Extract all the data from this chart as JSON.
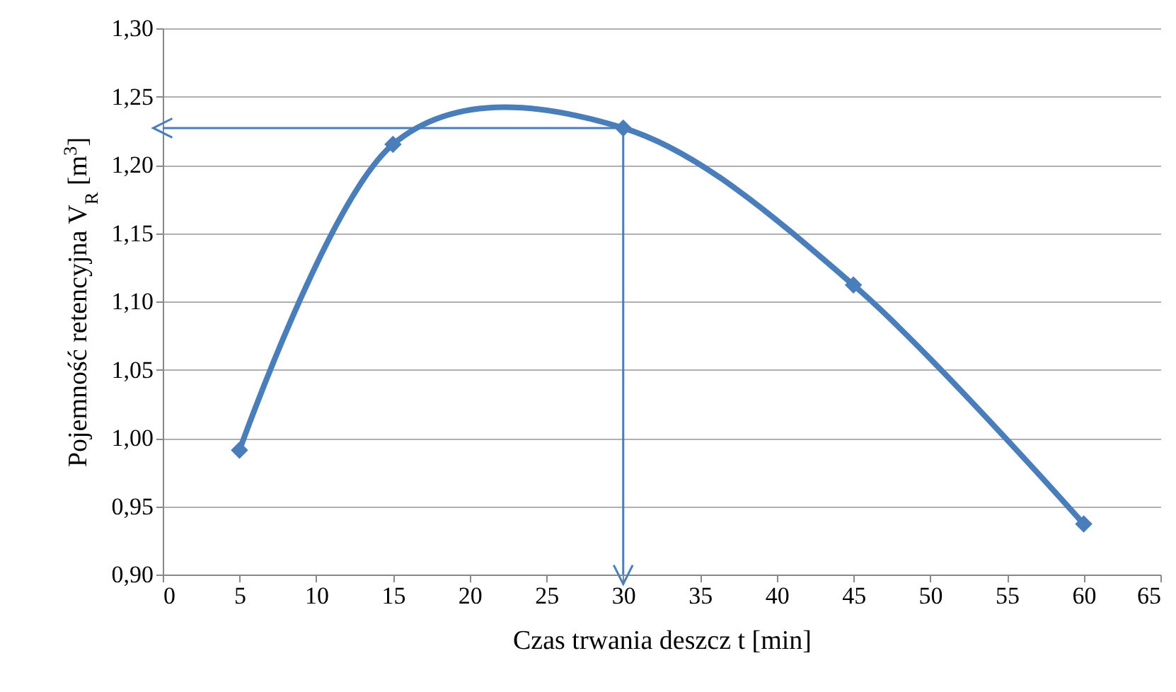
{
  "chart_data": {
    "type": "line",
    "xlabel": "Czas trwania deszcz t [min]",
    "ylabel": "Pojemność retencyjna V$_{R}$ [m$^{3}$]",
    "x": [
      5,
      15,
      30,
      45,
      60
    ],
    "series": [
      {
        "color": "#4a7ebb",
        "values": [
          0.991,
          1.215,
          1.227,
          1.112,
          0.937
        ]
      }
    ],
    "xlim": [
      0,
      65
    ],
    "xticks": [
      0,
      5,
      10,
      15,
      20,
      25,
      30,
      35,
      40,
      45,
      50,
      55,
      60,
      65
    ],
    "ylim": [
      0.9,
      1.3
    ],
    "yticks": [
      {
        "value": 0.9,
        "label": "0,90"
      },
      {
        "value": 0.95,
        "label": "0,95"
      },
      {
        "value": 1.0,
        "label": "1,00"
      },
      {
        "value": 1.05,
        "label": "1,05"
      },
      {
        "value": 1.1,
        "label": "1,10"
      },
      {
        "value": 1.15,
        "label": "1,15"
      },
      {
        "value": 1.2,
        "label": "1,20"
      },
      {
        "value": 1.25,
        "label": "1,25"
      },
      {
        "value": 1.3,
        "label": "1,30"
      }
    ],
    "ref_lines": [
      {
        "axis": "y",
        "value": 1.227,
        "color": "#4a7ebb"
      },
      {
        "axis": "x",
        "value": 30,
        "color": "#4a7ebb"
      }
    ],
    "grid": "y",
    "marker": "diamond"
  }
}
